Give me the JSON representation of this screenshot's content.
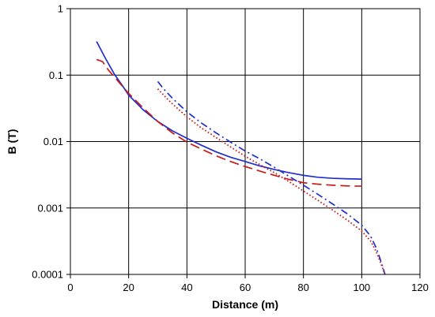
{
  "chart_data": {
    "type": "line",
    "title": "",
    "xlabel": "Distance (m)",
    "ylabel": "B (T)",
    "xlim": [
      0,
      120
    ],
    "ylim": [
      0.0001,
      1
    ],
    "yscale": "log",
    "grid": true,
    "x_ticks": [
      0,
      20,
      40,
      60,
      80,
      100,
      120
    ],
    "x_tick_labels": [
      "0",
      "20",
      "40",
      "60",
      "80",
      "100",
      "120"
    ],
    "y_ticks": [
      1,
      0.1,
      0.01,
      0.001,
      0.0001
    ],
    "y_tick_labels": [
      "1",
      "0.1",
      "0.01",
      "0.001",
      "0.0001"
    ],
    "series": [
      {
        "style": "solid",
        "color": "#1f2fd0",
        "points": [
          [
            9,
            0.32
          ],
          [
            12,
            0.18
          ],
          [
            15,
            0.105
          ],
          [
            18,
            0.068
          ],
          [
            20,
            0.05
          ],
          [
            25,
            0.03
          ],
          [
            30,
            0.02
          ],
          [
            35,
            0.0145
          ],
          [
            40,
            0.0112
          ],
          [
            45,
            0.0088
          ],
          [
            50,
            0.007
          ],
          [
            55,
            0.0058
          ],
          [
            60,
            0.005
          ],
          [
            65,
            0.0043
          ],
          [
            70,
            0.0038
          ],
          [
            75,
            0.0034
          ],
          [
            80,
            0.0031
          ],
          [
            85,
            0.0029
          ],
          [
            90,
            0.0028
          ],
          [
            95,
            0.00275
          ],
          [
            100,
            0.00272
          ]
        ]
      },
      {
        "style": "dashed",
        "color": "#c81818",
        "points": [
          [
            9,
            0.172
          ],
          [
            11,
            0.16
          ],
          [
            13,
            0.12
          ],
          [
            15,
            0.095
          ],
          [
            18,
            0.067
          ],
          [
            20,
            0.053
          ],
          [
            25,
            0.032
          ],
          [
            30,
            0.02
          ],
          [
            35,
            0.0135
          ],
          [
            40,
            0.0098
          ],
          [
            45,
            0.0077
          ],
          [
            50,
            0.0061
          ],
          [
            55,
            0.005
          ],
          [
            60,
            0.0042
          ],
          [
            65,
            0.0036
          ],
          [
            70,
            0.0031
          ],
          [
            75,
            0.0027
          ],
          [
            80,
            0.0024
          ],
          [
            85,
            0.00228
          ],
          [
            90,
            0.0022
          ],
          [
            95,
            0.00215
          ],
          [
            100,
            0.00213
          ]
        ]
      },
      {
        "style": "dashdot",
        "color": "#1f2fd0",
        "points": [
          [
            30,
            0.08
          ],
          [
            32,
            0.062
          ],
          [
            35,
            0.045
          ],
          [
            40,
            0.028
          ],
          [
            45,
            0.019
          ],
          [
            50,
            0.0135
          ],
          [
            55,
            0.0098
          ],
          [
            60,
            0.0072
          ],
          [
            65,
            0.0055
          ],
          [
            70,
            0.0041
          ],
          [
            75,
            0.003
          ],
          [
            80,
            0.0022
          ],
          [
            85,
            0.0016
          ],
          [
            90,
            0.00115
          ],
          [
            95,
            0.00082
          ],
          [
            100,
            0.00055
          ],
          [
            103,
            0.00038
          ],
          [
            105,
            0.00025
          ],
          [
            107,
            0.00014
          ],
          [
            108,
            0.0001
          ]
        ]
      },
      {
        "style": "dotted",
        "color": "#c81818",
        "points": [
          [
            30,
            0.062
          ],
          [
            32,
            0.05
          ],
          [
            35,
            0.037
          ],
          [
            40,
            0.0235
          ],
          [
            45,
            0.016
          ],
          [
            50,
            0.0115
          ],
          [
            55,
            0.0083
          ],
          [
            60,
            0.006
          ],
          [
            65,
            0.0045
          ],
          [
            70,
            0.0034
          ],
          [
            75,
            0.0025
          ],
          [
            80,
            0.0018
          ],
          [
            85,
            0.0013
          ],
          [
            90,
            0.00093
          ],
          [
            95,
            0.00066
          ],
          [
            100,
            0.00045
          ],
          [
            103,
            0.00032
          ],
          [
            105,
            0.00022
          ],
          [
            107,
            0.00013
          ],
          [
            108,
            0.0001
          ]
        ]
      }
    ]
  }
}
